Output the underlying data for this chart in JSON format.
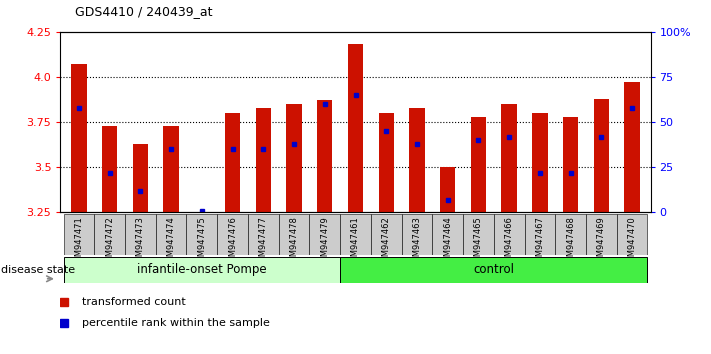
{
  "title": "GDS4410 / 240439_at",
  "samples": [
    "GSM947471",
    "GSM947472",
    "GSM947473",
    "GSM947474",
    "GSM947475",
    "GSM947476",
    "GSM947477",
    "GSM947478",
    "GSM947479",
    "GSM947461",
    "GSM947462",
    "GSM947463",
    "GSM947464",
    "GSM947465",
    "GSM947466",
    "GSM947467",
    "GSM947468",
    "GSM947469",
    "GSM947470"
  ],
  "red_values": [
    4.07,
    3.73,
    3.63,
    3.73,
    3.25,
    3.8,
    3.83,
    3.85,
    3.87,
    4.18,
    3.8,
    3.83,
    3.5,
    3.78,
    3.85,
    3.8,
    3.78,
    3.88,
    3.97
  ],
  "blue_values": [
    58,
    22,
    12,
    35,
    1,
    35,
    35,
    38,
    60,
    65,
    45,
    38,
    7,
    40,
    42,
    22,
    22,
    42,
    58
  ],
  "group1_label": "infantile-onset Pompe",
  "group2_label": "control",
  "group1_count": 9,
  "group2_count": 10,
  "ylim_left": [
    3.25,
    4.25
  ],
  "ylim_right": [
    0,
    100
  ],
  "yticks_left": [
    3.25,
    3.5,
    3.75,
    4.0,
    4.25
  ],
  "yticks_right": [
    0,
    25,
    50,
    75,
    100
  ],
  "grid_values": [
    3.5,
    3.75,
    4.0
  ],
  "bar_color": "#CC1100",
  "blue_color": "#0000CC",
  "group1_bg": "#CCFFCC",
  "group2_bg": "#44EE44",
  "tick_bg": "#CCCCCC",
  "disease_state_label": "disease state",
  "legend_red": "transformed count",
  "legend_blue": "percentile rank within the sample"
}
